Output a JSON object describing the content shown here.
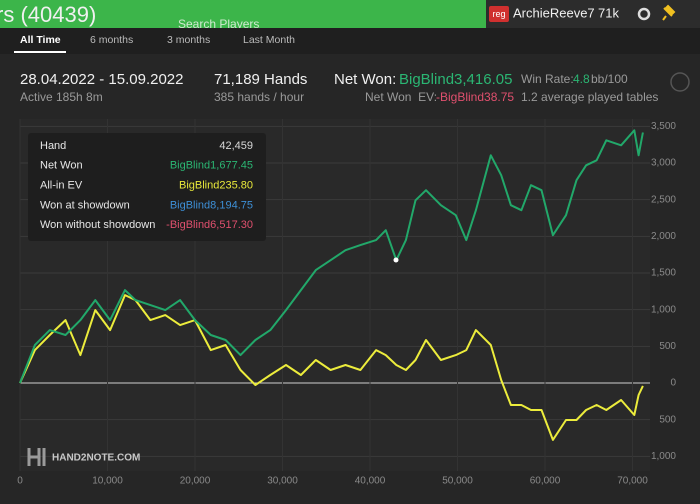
{
  "header": {
    "title": "rs (40439)",
    "search": "Search Players",
    "badge": "reg",
    "player": "ArchieReeve7",
    "count": "71k"
  },
  "tabs": [
    "All Time",
    "6 months",
    "3 months",
    "Last Month"
  ],
  "summary": {
    "period": "28.04.2022 - 15.09.2022",
    "active": "Active 185h 8m",
    "hands": "71,189 Hands",
    "rate": "385 hands / hour",
    "net_won_label": "Net Won:",
    "net_won": "BigBlind3,416.05",
    "win_rate_label": "Win Rate:",
    "win_rate": "4.8",
    "win_rate_unit": "bb/100",
    "ev_label": "Net Won  EV:",
    "ev": "-BigBlind38.75",
    "tables": "1.2 average played tables"
  },
  "tooltip": {
    "rows": [
      {
        "label": "Hand",
        "value": "42,459",
        "color": "#d8d8d8"
      },
      {
        "label": "Net Won",
        "value": "BigBlind1,677.45",
        "color": "#2bb673"
      },
      {
        "label": "All-in EV",
        "value": "BigBlind235.80",
        "color": "#e8e83a"
      },
      {
        "label": "Won at showdown",
        "value": "BigBlind8,194.75",
        "color": "#3d8fd6"
      },
      {
        "label": "Won without showdown",
        "value": "-BigBlind6,517.30",
        "color": "#e0506e"
      }
    ]
  },
  "watermark": "HAND2NOTE.COM",
  "chart_data": {
    "type": "line",
    "x": [
      0,
      1700,
      3400,
      5200,
      6900,
      8600,
      10300,
      12000,
      13200,
      14900,
      16600,
      18300,
      20000,
      21800,
      23500,
      25200,
      26900,
      28600,
      30400,
      32100,
      33800,
      35500,
      37200,
      38900,
      40700,
      41800,
      43000,
      44100,
      45200,
      46400,
      48100,
      49800,
      51000,
      52100,
      53800,
      55000,
      56100,
      57300,
      58400,
      59600,
      60900,
      62400,
      63600,
      64700,
      65900,
      67000,
      68700,
      70200,
      70700,
      71189
    ],
    "series": [
      {
        "color": "#22a86a",
        "values": [
          0,
          518,
          722,
          654,
          858,
          1130,
          858,
          1267,
          1130,
          1062,
          994,
          1130,
          858,
          654,
          586,
          381,
          586,
          722,
          994,
          1267,
          1539,
          1675,
          1811,
          1880,
          1948,
          2084,
          1675,
          1948,
          2492,
          2629,
          2424,
          2288,
          1948,
          2356,
          3105,
          2833,
          2424,
          2356,
          2697,
          2629,
          2016,
          2288,
          2765,
          2969,
          3037,
          3310,
          3242,
          3446,
          3105,
          3416
        ]
      },
      {
        "color": "#ecec3c",
        "values": [
          0,
          449,
          654,
          858,
          381,
          994,
          722,
          1199,
          1130,
          858,
          926,
          790,
          858,
          449,
          518,
          177,
          -27,
          109,
          245,
          109,
          313,
          177,
          245,
          177,
          449,
          381,
          245,
          177,
          313,
          586,
          313,
          381,
          449,
          722,
          518,
          41,
          -300,
          -300,
          -368,
          -368,
          -776,
          -504,
          -504,
          -368,
          -300,
          -368,
          -232,
          -436,
          -163,
          -39
        ]
      }
    ],
    "xlim": [
      0,
      72000
    ],
    "xticks": [
      0,
      {
        "value": 10000,
        "label": "10,000"
      },
      {
        "value": 20000,
        "label": "20,000"
      },
      {
        "value": 30000,
        "label": "30,000"
      },
      {
        "value": 40000,
        "label": "40,000"
      },
      {
        "value": 50000,
        "label": "50,000"
      },
      {
        "value": 60000,
        "label": "60,000"
      },
      {
        "value": 70000,
        "label": "70,000"
      }
    ],
    "ylim": [
      -1200,
      3600
    ],
    "yticks": [
      {
        "value": -1000,
        "label": "1,000"
      },
      {
        "value": -500,
        "label": "500"
      },
      0,
      500,
      {
        "value": 1000,
        "label": "1,000"
      },
      {
        "value": 1500,
        "label": "1,500"
      },
      {
        "value": 2000,
        "label": "2,000"
      },
      {
        "value": 2500,
        "label": "2,500"
      },
      {
        "value": 3000,
        "label": "3,000"
      },
      {
        "value": 3500,
        "label": "3,500"
      }
    ],
    "grid": true
  }
}
